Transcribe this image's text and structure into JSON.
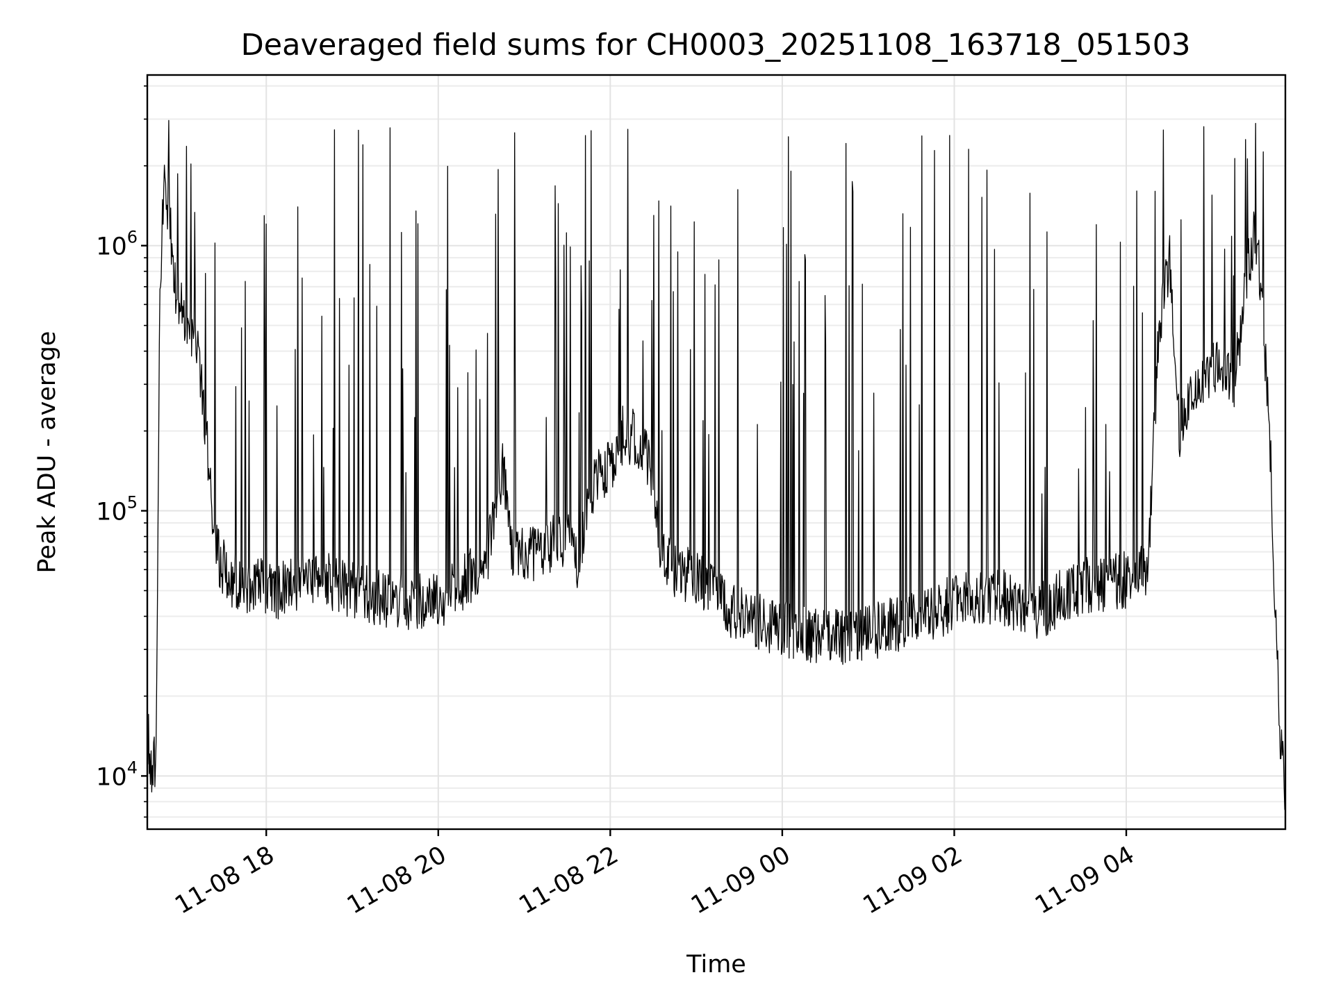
{
  "chart_data": {
    "type": "line",
    "title": "Deaveraged field sums for CH0003_20251108_163718_051503",
    "xlabel": "Time",
    "ylabel": "Peak ADU - average",
    "yscale": "log",
    "ylim": [
      6300,
      4400000
    ],
    "xlim": [
      "2025-11-08 16:37",
      "2025-11-09 05:51"
    ],
    "grid": true,
    "x_ticks": [
      {
        "value": "2025-11-08 18:00",
        "label": "11-08 18"
      },
      {
        "value": "2025-11-08 20:00",
        "label": "11-08 20"
      },
      {
        "value": "2025-11-08 22:00",
        "label": "11-08 22"
      },
      {
        "value": "2025-11-09 00:00",
        "label": "11-09 00"
      },
      {
        "value": "2025-11-09 02:00",
        "label": "11-09 02"
      },
      {
        "value": "2025-11-09 04:00",
        "label": "11-09 04"
      }
    ],
    "y_ticks": [
      {
        "value": 10000,
        "base": "10",
        "exp": "4"
      },
      {
        "value": 100000,
        "base": "10",
        "exp": "5"
      },
      {
        "value": 1000000,
        "base": "10",
        "exp": "6"
      }
    ],
    "series": [
      {
        "color": "#000000",
        "points": [
          [
            "2025-11-08 16:37",
            15000
          ],
          [
            "2025-11-08 16:40",
            10000
          ],
          [
            "2025-11-08 16:43",
            12000
          ],
          [
            "2025-11-08 16:46",
            800000
          ],
          [
            "2025-11-08 16:49",
            1700000
          ],
          [
            "2025-11-08 16:52",
            1400000
          ],
          [
            "2025-11-08 16:55",
            900000
          ],
          [
            "2025-11-08 16:58",
            600000
          ],
          [
            "2025-11-08 17:03",
            550000
          ],
          [
            "2025-11-08 17:10",
            450000
          ],
          [
            "2025-11-08 17:15",
            300000
          ],
          [
            "2025-11-08 17:20",
            150000
          ],
          [
            "2025-11-08 17:25",
            70000
          ],
          [
            "2025-11-08 17:35",
            55000
          ],
          [
            "2025-11-08 17:50",
            52000
          ],
          [
            "2025-11-08 18:10",
            50000
          ],
          [
            "2025-11-08 18:40",
            55000
          ],
          [
            "2025-11-08 19:00",
            50000
          ],
          [
            "2025-11-08 19:30",
            45000
          ],
          [
            "2025-11-08 20:00",
            45000
          ],
          [
            "2025-11-08 20:20",
            55000
          ],
          [
            "2025-11-08 20:35",
            70000
          ],
          [
            "2025-11-08 20:45",
            150000
          ],
          [
            "2025-11-08 20:52",
            65000
          ],
          [
            "2025-11-08 21:10",
            70000
          ],
          [
            "2025-11-08 21:30",
            80000
          ],
          [
            "2025-11-08 21:37",
            60000
          ],
          [
            "2025-11-08 21:45",
            120000
          ],
          [
            "2025-11-08 22:00",
            150000
          ],
          [
            "2025-11-08 22:10",
            200000
          ],
          [
            "2025-11-08 22:20",
            180000
          ],
          [
            "2025-11-08 22:30",
            140000
          ],
          [
            "2025-11-08 22:35",
            65000
          ],
          [
            "2025-11-08 22:50",
            58000
          ],
          [
            "2025-11-08 23:10",
            52000
          ],
          [
            "2025-11-08 23:25",
            42000
          ],
          [
            "2025-11-08 23:45",
            38000
          ],
          [
            "2025-11-09 00:00",
            36000
          ],
          [
            "2025-11-09 00:30",
            33000
          ],
          [
            "2025-11-09 01:00",
            35000
          ],
          [
            "2025-11-09 01:30",
            38000
          ],
          [
            "2025-11-09 02:00",
            45000
          ],
          [
            "2025-11-09 02:30",
            48000
          ],
          [
            "2025-11-09 03:00",
            42000
          ],
          [
            "2025-11-09 03:30",
            52000
          ],
          [
            "2025-11-09 04:00",
            55000
          ],
          [
            "2025-11-09 04:15",
            60000
          ],
          [
            "2025-11-09 04:22",
            400000
          ],
          [
            "2025-11-09 04:30",
            900000
          ],
          [
            "2025-11-09 04:37",
            200000
          ],
          [
            "2025-11-09 04:45",
            250000
          ],
          [
            "2025-11-09 05:00",
            350000
          ],
          [
            "2025-11-09 05:15",
            300000
          ],
          [
            "2025-11-09 05:25",
            800000
          ],
          [
            "2025-11-09 05:30",
            1200000
          ],
          [
            "2025-11-09 05:35",
            600000
          ],
          [
            "2025-11-09 05:40",
            200000
          ],
          [
            "2025-11-09 05:45",
            30000
          ],
          [
            "2025-11-09 05:48",
            12000
          ],
          [
            "2025-11-09 05:51",
            9000
          ]
        ]
      }
    ]
  }
}
